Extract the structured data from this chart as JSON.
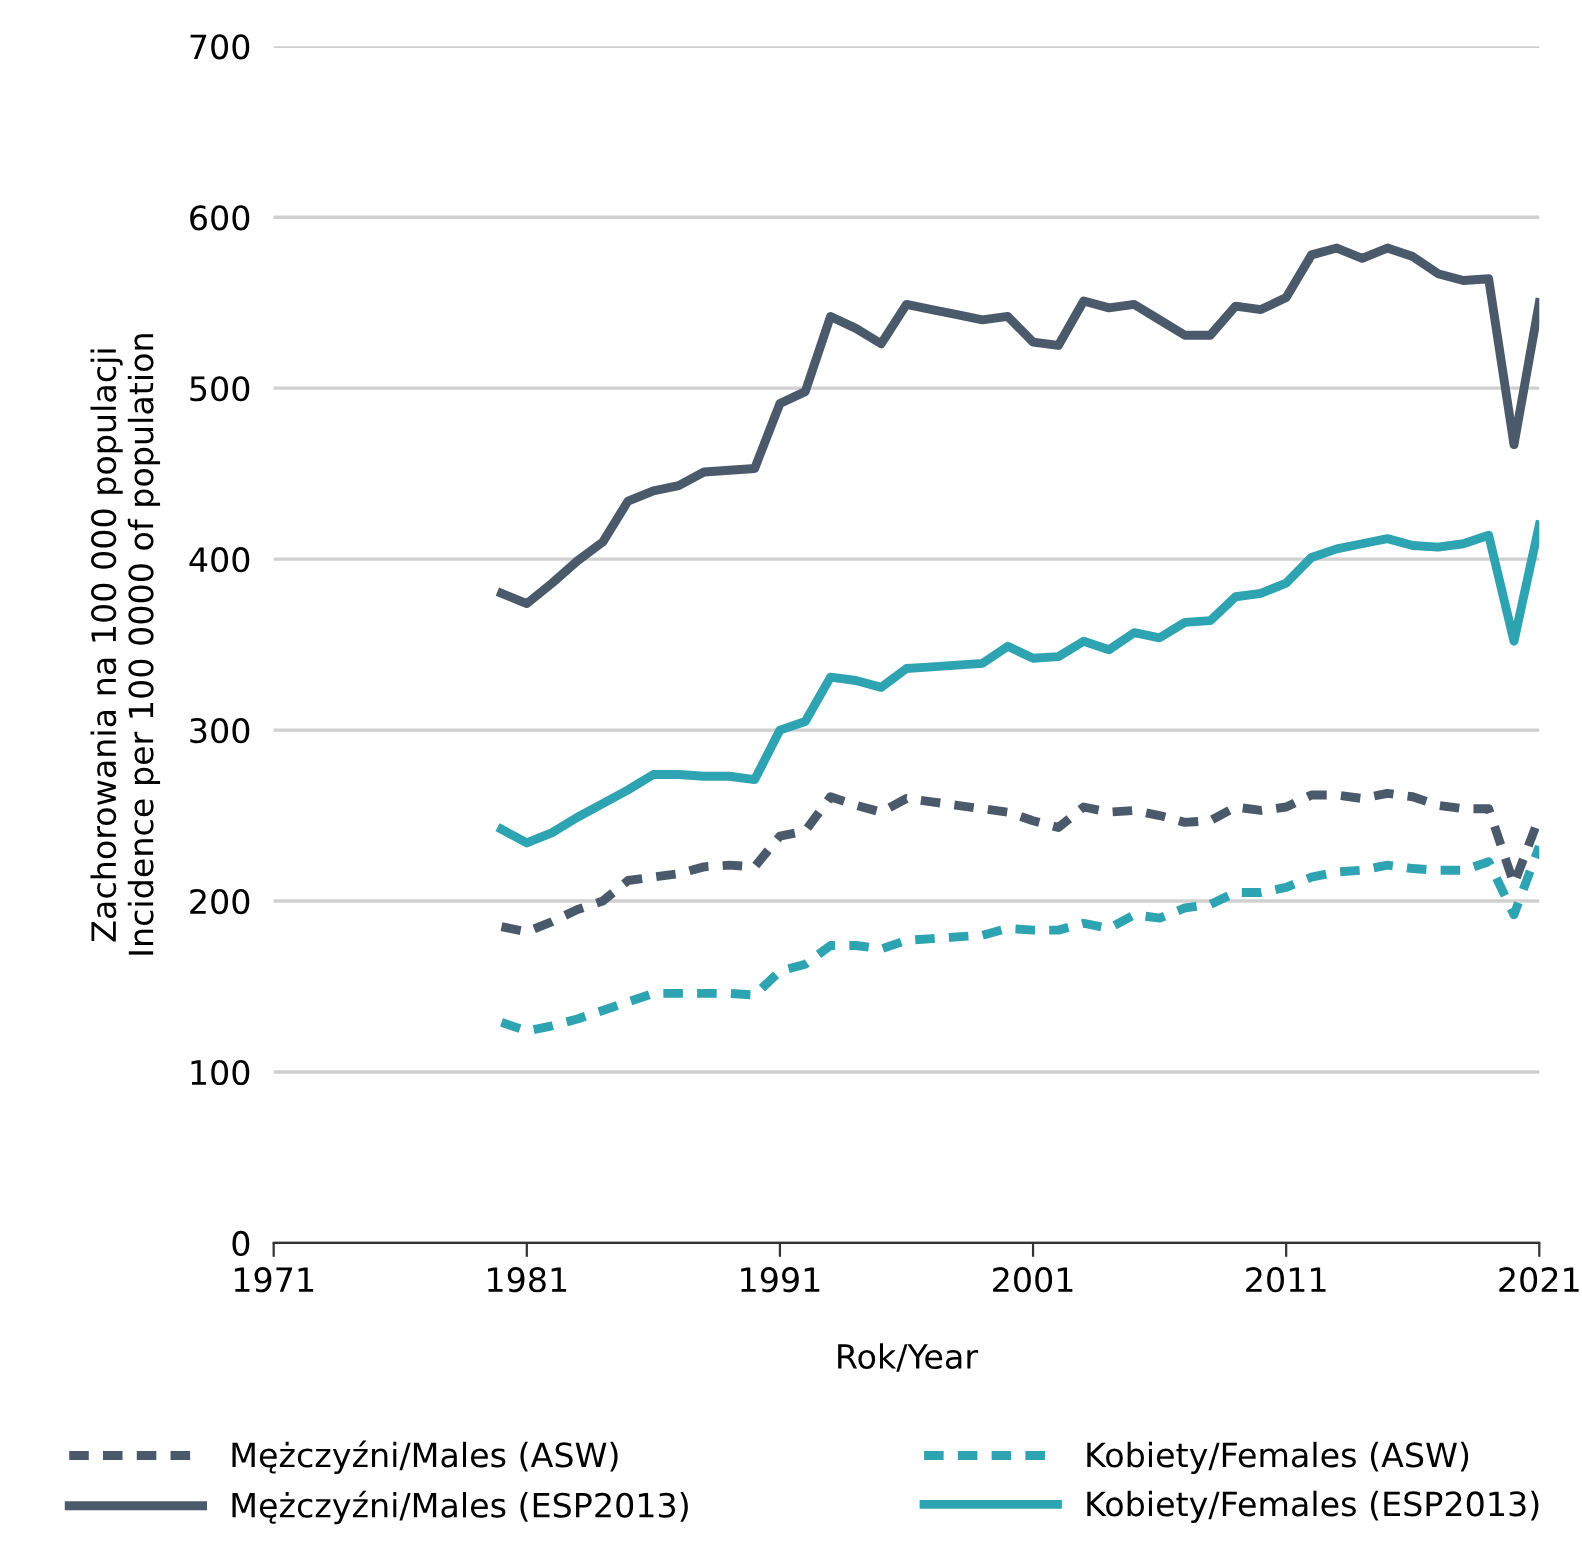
{
  "chart_data": {
    "type": "line",
    "xlabel": "Rok/Year",
    "ylabel": "Zachorowania na 100 000 populacji\nIncidence per 100 0000 of population",
    "x": [
      1980,
      1981,
      1982,
      1983,
      1984,
      1985,
      1986,
      1987,
      1988,
      1989,
      1990,
      1991,
      1992,
      1993,
      1994,
      1995,
      1996,
      1997,
      1998,
      1999,
      2000,
      2001,
      2002,
      2003,
      2004,
      2005,
      2006,
      2007,
      2008,
      2009,
      2010,
      2011,
      2012,
      2013,
      2014,
      2015,
      2016,
      2017,
      2018,
      2019,
      2020,
      2021
    ],
    "series": [
      {
        "name": "Mężczyźni/Males (ASW)",
        "color": "#4a5a6a",
        "line_style": "dashed",
        "values": [
          185,
          182,
          188,
          195,
          200,
          212,
          214,
          216,
          220,
          221,
          220,
          238,
          241,
          261,
          256,
          252,
          260,
          258,
          256,
          254,
          252,
          247,
          243,
          255,
          252,
          253,
          250,
          246,
          247,
          255,
          253,
          255,
          262,
          262,
          260,
          263,
          261,
          256,
          254,
          254,
          210,
          249
        ]
      },
      {
        "name": "Mężczyźni/Males (ESP2013)",
        "color": "#4a5a6a",
        "line_style": "solid",
        "values": [
          380,
          374,
          386,
          399,
          410,
          434,
          440,
          443,
          451,
          452,
          453,
          491,
          498,
          542,
          535,
          526,
          549,
          546,
          543,
          540,
          542,
          527,
          525,
          551,
          547,
          549,
          540,
          531,
          531,
          548,
          546,
          553,
          578,
          582,
          576,
          582,
          577,
          567,
          563,
          564,
          467,
          550
        ]
      },
      {
        "name": "Kobiety/Females (ASW)",
        "color": "#2ea3b2",
        "line_style": "dashed",
        "values": [
          129,
          124,
          127,
          131,
          136,
          141,
          146,
          146,
          146,
          146,
          145,
          159,
          163,
          174,
          174,
          172,
          177,
          178,
          179,
          180,
          184,
          183,
          183,
          187,
          184,
          192,
          190,
          196,
          198,
          205,
          205,
          208,
          214,
          217,
          218,
          221,
          219,
          218,
          218,
          223,
          192,
          232
        ]
      },
      {
        "name": "Kobiety/Females (ESP2013)",
        "color": "#2ea3b2",
        "line_style": "solid",
        "values": [
          242,
          234,
          240,
          249,
          257,
          265,
          274,
          274,
          273,
          273,
          271,
          300,
          305,
          331,
          329,
          325,
          336,
          337,
          338,
          339,
          349,
          342,
          343,
          352,
          347,
          357,
          354,
          363,
          364,
          378,
          380,
          386,
          401,
          406,
          409,
          412,
          408,
          407,
          409,
          414,
          352,
          420
        ]
      }
    ],
    "xlim": [
      1971,
      2021
    ],
    "xticks": [
      1971,
      1981,
      1991,
      2001,
      2011,
      2021
    ],
    "ylim": [
      0,
      700
    ],
    "yticks": [
      0,
      100,
      200,
      300,
      400,
      500,
      600,
      700
    ],
    "grid": "y",
    "legend": "bottom"
  }
}
